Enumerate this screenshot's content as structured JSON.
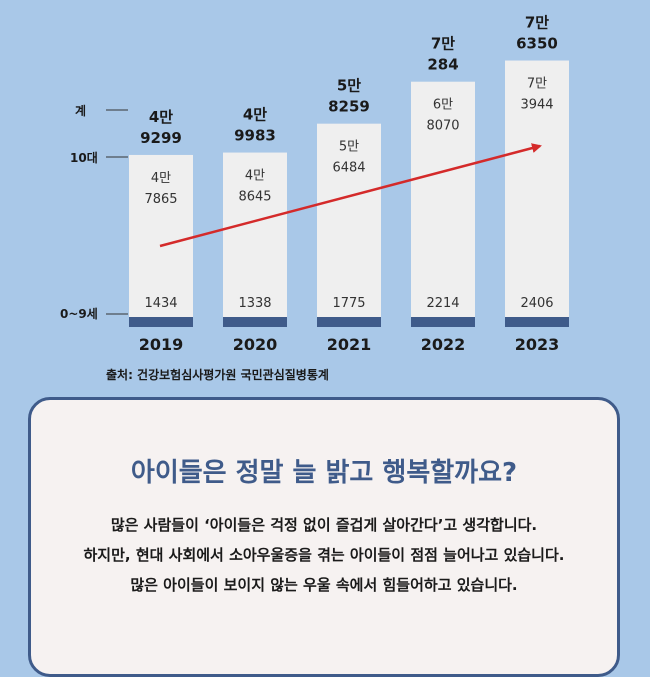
{
  "legend": {
    "total": "계",
    "teen": "10대",
    "child": "0~9세"
  },
  "colors": {
    "background": "#a9c8e8",
    "bar_teen": "#efefef",
    "bar_child": "#3f5b8a",
    "trend_arrow": "#d42a2a",
    "card_border": "#3f5b8a",
    "title": "#3f5b8a"
  },
  "chart_data": {
    "type": "bar",
    "stacked": true,
    "categories": [
      "2019",
      "2020",
      "2021",
      "2022",
      "2023"
    ],
    "series": [
      {
        "name": "0~9세",
        "values": [
          1434,
          1338,
          1775,
          2214,
          2406
        ]
      },
      {
        "name": "10대",
        "values": [
          47865,
          48645,
          56484,
          68070,
          73944
        ]
      }
    ],
    "totals": [
      49299,
      49983,
      58259,
      70284,
      76350
    ],
    "labels": {
      "total": [
        [
          "4만",
          "9299"
        ],
        [
          "4만",
          "9983"
        ],
        [
          "5만",
          "8259"
        ],
        [
          "7만",
          "284"
        ],
        [
          "7만",
          "6350"
        ]
      ],
      "teen": [
        [
          "4만",
          "7865"
        ],
        [
          "4만",
          "8645"
        ],
        [
          "5만",
          "6484"
        ],
        [
          "6만",
          "8070"
        ],
        [
          "7만",
          "3944"
        ]
      ],
      "child": [
        "1434",
        "1338",
        "1775",
        "2214",
        "2406"
      ]
    },
    "trend": "up",
    "grid": false
  },
  "source": "출처: 건강보험심사평가원 국민관심질병통계",
  "card": {
    "title": "아이들은 정말 늘 밝고 행복할까요?",
    "lines": [
      "많은 사람들이 ‘아이들은 걱정 없이 즐겁게 살아간다’고 생각합니다.",
      "하지만, 현대 사회에서 소아우울증을 겪는 아이들이 점점 늘어나고 있습니다.",
      "많은 아이들이 보이지 않는 우울 속에서 힘들어하고 있습니다."
    ]
  }
}
